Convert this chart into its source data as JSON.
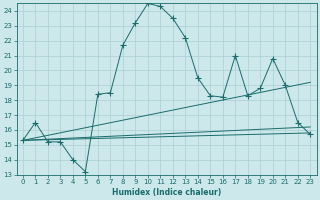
{
  "xlabel": "Humidex (Indice chaleur)",
  "bg_color": "#cce8ea",
  "grid_color": "#aacfd4",
  "line_color": "#1a6b6b",
  "xlim": [
    -0.5,
    23.5
  ],
  "ylim": [
    13,
    24.5
  ],
  "yticks": [
    13,
    14,
    15,
    16,
    17,
    18,
    19,
    20,
    21,
    22,
    23,
    24
  ],
  "xticks": [
    0,
    1,
    2,
    3,
    4,
    5,
    6,
    7,
    8,
    9,
    10,
    11,
    12,
    13,
    14,
    15,
    16,
    17,
    18,
    19,
    20,
    21,
    22,
    23
  ],
  "line1_x": [
    0,
    1,
    2,
    3,
    4,
    5,
    6,
    7,
    8,
    9,
    10,
    11,
    12,
    13,
    14,
    15,
    16,
    17,
    18,
    19,
    20,
    21,
    22,
    23
  ],
  "line1_y": [
    15.3,
    16.5,
    15.2,
    15.2,
    14.0,
    13.2,
    18.4,
    18.5,
    21.7,
    23.2,
    24.5,
    24.3,
    23.5,
    22.2,
    19.5,
    18.3,
    18.2,
    21.0,
    18.3,
    18.8,
    20.8,
    19.0,
    16.5,
    15.7
  ],
  "line2_x": [
    0,
    23
  ],
  "line2_y": [
    15.3,
    19.2
  ],
  "line3_x": [
    0,
    23
  ],
  "line3_y": [
    15.3,
    16.2
  ],
  "line4_x": [
    0,
    23
  ],
  "line4_y": [
    15.3,
    15.8
  ]
}
